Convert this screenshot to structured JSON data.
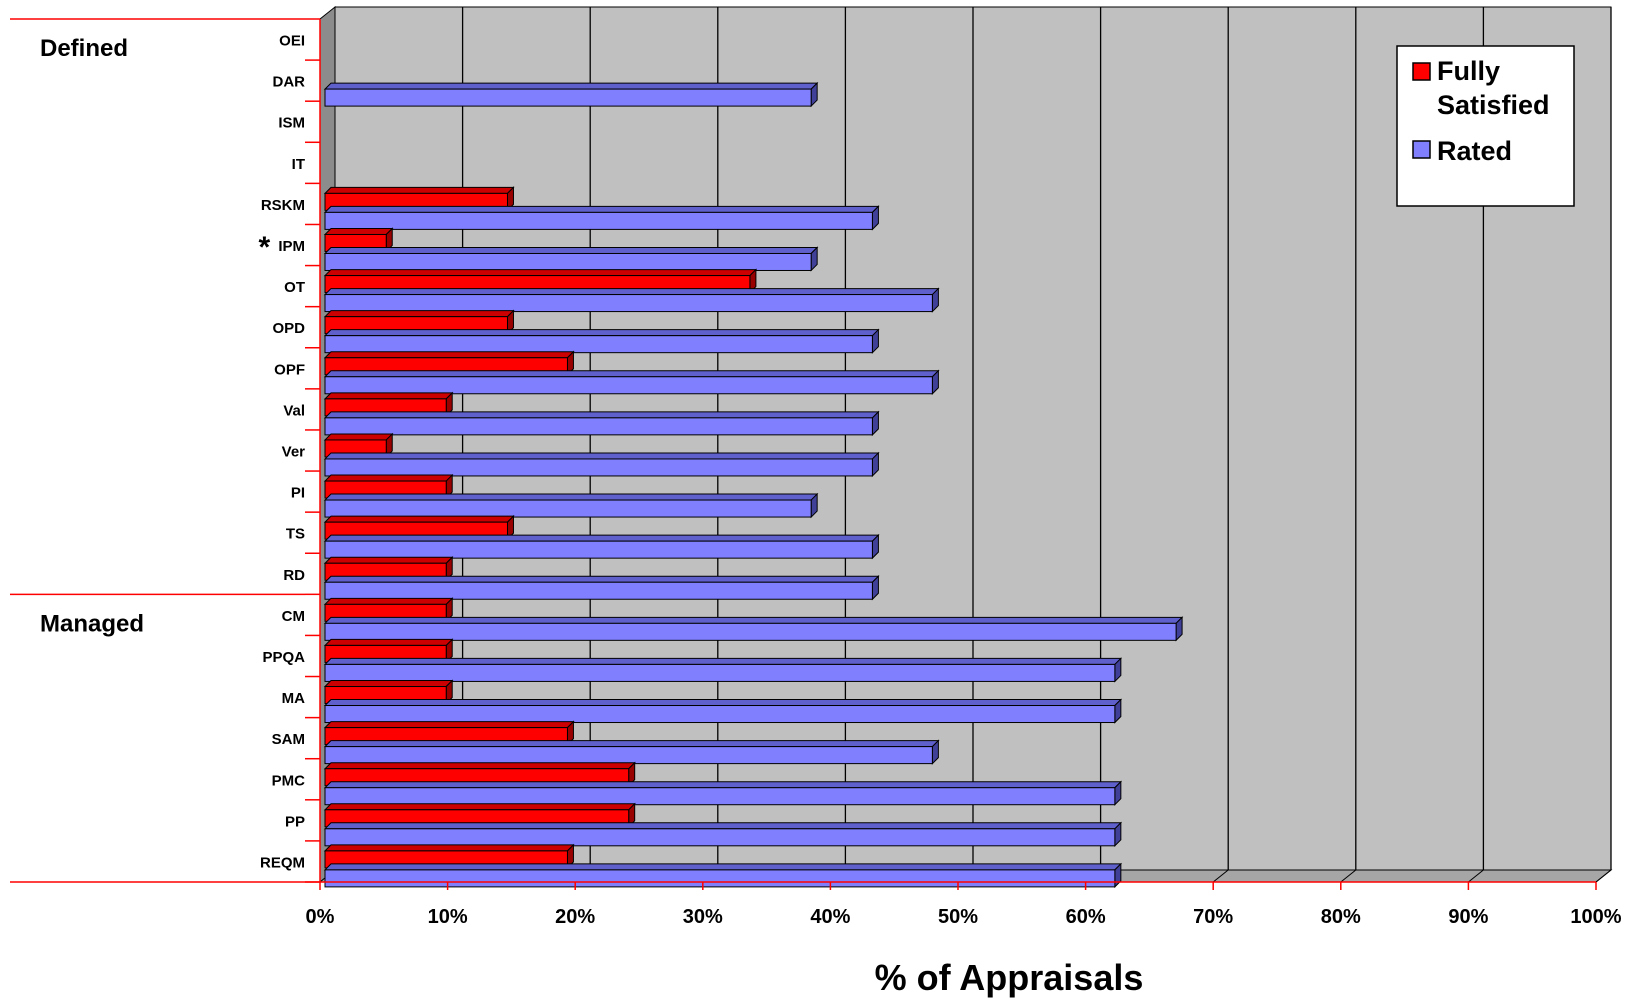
{
  "chart_data": {
    "type": "bar",
    "orientation": "horizontal",
    "categories": [
      "OEI",
      "DAR",
      "ISM",
      "IT",
      "RSKM",
      "IPM",
      "OT",
      "OPD",
      "OPF",
      "Val",
      "Ver",
      "PI",
      "TS",
      "RD",
      "CM",
      "PPQA",
      "MA",
      "SAM",
      "PMC",
      "PP",
      "REQM"
    ],
    "series": [
      {
        "name": "Fully Satisfied",
        "color": "#ff0000",
        "values": [
          0,
          0,
          0,
          0,
          14.3,
          4.8,
          33.3,
          14.3,
          19,
          9.5,
          4.8,
          9.5,
          14.3,
          9.5,
          9.5,
          9.5,
          9.5,
          19,
          23.8,
          23.8,
          19
        ]
      },
      {
        "name": "Rated",
        "color": "#8080ff",
        "values": [
          0,
          38.1,
          0,
          0,
          42.9,
          38.1,
          47.6,
          42.9,
          47.6,
          42.9,
          42.9,
          38.1,
          42.9,
          42.9,
          66.7,
          61.9,
          61.9,
          47.6,
          61.9,
          61.9,
          61.9
        ]
      }
    ],
    "groups": [
      {
        "label": "Defined",
        "first": "OEI",
        "last": "RD"
      },
      {
        "label": "Managed",
        "first": "CM",
        "last": "REQM"
      }
    ],
    "annotations": [
      {
        "category": "IPM",
        "text": "*"
      }
    ],
    "xlabel": "% of Appraisals",
    "xlim": [
      0,
      100
    ],
    "xticks": [
      0,
      10,
      20,
      30,
      40,
      50,
      60,
      70,
      80,
      90,
      100
    ],
    "xtick_labels": [
      "0%",
      "10%",
      "20%",
      "30%",
      "40%",
      "50%",
      "60%",
      "70%",
      "80%",
      "90%",
      "100%"
    ],
    "grid": "vertical",
    "legend": "top-right",
    "background_color": "#c0c0c0",
    "axis_color": "#ff0000"
  }
}
